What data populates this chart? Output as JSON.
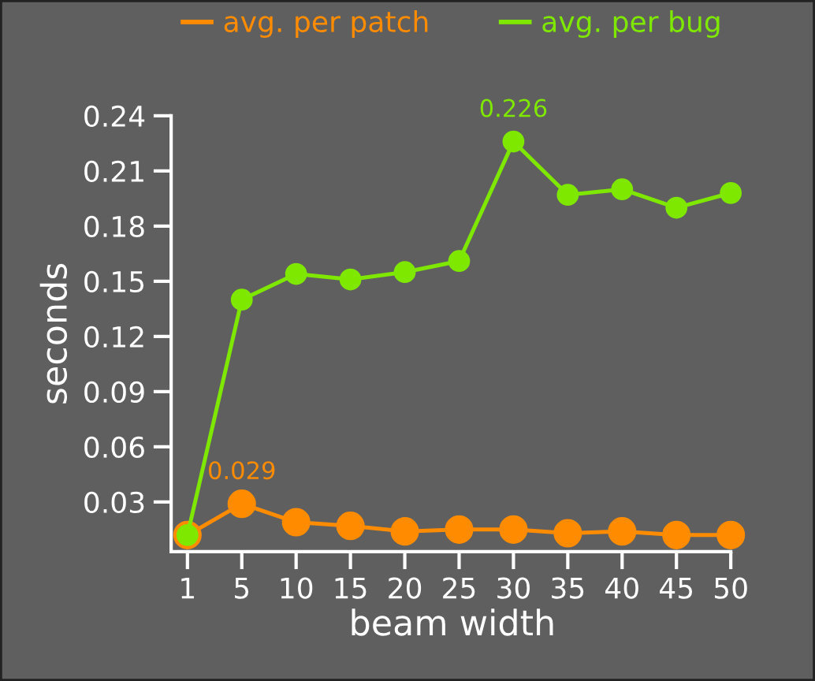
{
  "chart_data": {
    "type": "line",
    "xlabel": "beam width",
    "ylabel": "seconds",
    "categories": [
      "1",
      "5",
      "10",
      "15",
      "20",
      "25",
      "30",
      "35",
      "40",
      "45",
      "50"
    ],
    "series": [
      {
        "name": "avg. per patch",
        "color": "#ff8c00",
        "values": [
          0.012,
          0.029,
          0.019,
          0.017,
          0.014,
          0.015,
          0.015,
          0.013,
          0.014,
          0.012,
          0.012
        ]
      },
      {
        "name": "avg. per bug",
        "color": "#7fe800",
        "values": [
          0.012,
          0.14,
          0.154,
          0.151,
          0.155,
          0.161,
          0.226,
          0.197,
          0.2,
          0.19,
          0.198
        ]
      }
    ],
    "annotations": [
      {
        "text": "0.029",
        "x": "5",
        "y": 0.029
      },
      {
        "text": "0.226",
        "x": "30",
        "y": 0.226
      }
    ],
    "ylim": [
      0.003,
      0.24
    ],
    "yticks": [
      {
        "value": 0.03,
        "label": "0.03"
      },
      {
        "value": 0.06,
        "label": "0.06"
      },
      {
        "value": 0.09,
        "label": "0.09"
      },
      {
        "value": 0.12,
        "label": "0.12"
      },
      {
        "value": 0.15,
        "label": "0.15"
      },
      {
        "value": 0.18,
        "label": "0.18"
      },
      {
        "value": 0.21,
        "label": "0.21"
      },
      {
        "value": 0.24,
        "label": "0.24"
      }
    ],
    "marker": "circle",
    "line_style": "solid",
    "legend": "top",
    "grid": false
  }
}
